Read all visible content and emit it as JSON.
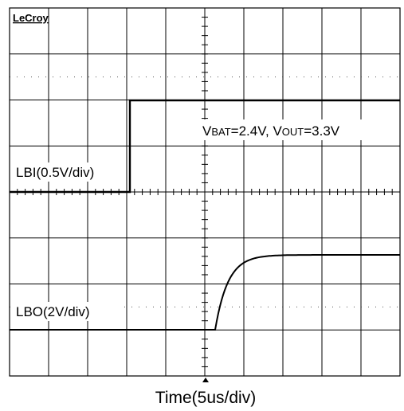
{
  "brand": "LeCroy",
  "labels": {
    "lbi": "LBI(0.5V/div)",
    "lbo": "LBO(2V/div)"
  },
  "annotation": [
    "V",
    "BAT",
    "=2.4V, V",
    "OUT",
    "=3.3V"
  ],
  "x_label": "Time(5us/div)"
}
